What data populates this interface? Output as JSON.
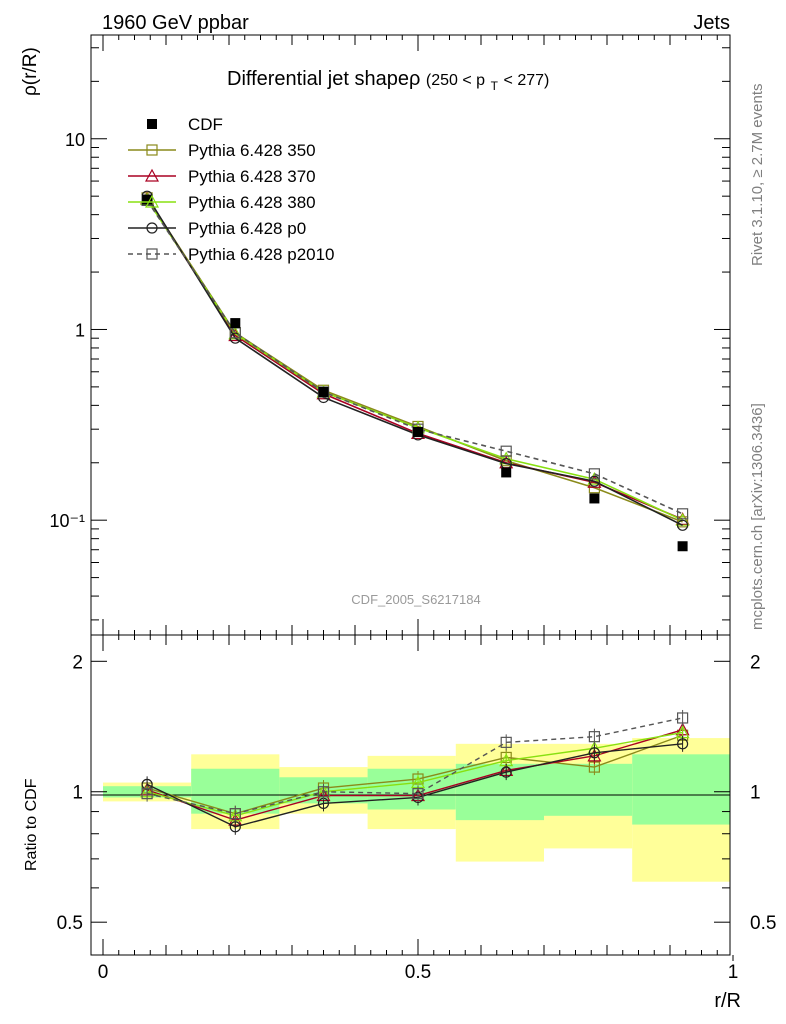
{
  "header": {
    "left_label": "1960 GeV ppbar",
    "right_label": "Jets",
    "side_label_top": "Rivet 3.1.10, ≥ 2.7M events",
    "side_label_bottom": "mcplots.cern.ch [arXiv:1306.3436]",
    "analysis_id": "CDF_2005_S6217184"
  },
  "chart_data": [
    {
      "type": "line",
      "title": "Differential jet shapeρ",
      "subtitle": "(250 < p_T < 277)",
      "title_parts": {
        "main": "Differential jet shapeρ",
        "range_pre": "(250 < p",
        "range_sub": "T",
        "range_post": " < 277)"
      },
      "xlabel": "r/R",
      "ylabel": "ρ(r/R)",
      "xlim": [
        0,
        1
      ],
      "ylim": [
        0.025,
        35
      ],
      "yscale": "log",
      "y_tick_labels": [
        "10",
        "1",
        "10⁻¹"
      ],
      "x": [
        0.07,
        0.21,
        0.35,
        0.5,
        0.64,
        0.78,
        0.92
      ],
      "series": [
        {
          "name": "CDF",
          "color": "#000000",
          "marker": "filled-square",
          "line": "none",
          "values": [
            4.8,
            1.08,
            0.47,
            0.29,
            0.178,
            0.13,
            0.073
          ]
        },
        {
          "name": "Pythia 6.428 350",
          "color": "#8a8a1a",
          "marker": "open-square",
          "line": "solid",
          "values": [
            4.9,
            0.96,
            0.48,
            0.31,
            0.205,
            0.148,
            0.098
          ]
        },
        {
          "name": "Pythia 6.428 370",
          "color": "#aa0022",
          "marker": "open-triangle",
          "line": "solid",
          "values": [
            4.85,
            0.93,
            0.46,
            0.285,
            0.2,
            0.158,
            0.101
          ]
        },
        {
          "name": "Pythia 6.428 380",
          "color": "#88e010",
          "marker": "open-triangle",
          "line": "solid",
          "values": [
            4.8,
            0.95,
            0.47,
            0.305,
            0.21,
            0.164,
            0.1
          ]
        },
        {
          "name": "Pythia 6.428 p0",
          "color": "#222222",
          "marker": "open-circle",
          "line": "solid",
          "values": [
            5.0,
            0.9,
            0.44,
            0.28,
            0.198,
            0.16,
            0.094
          ]
        },
        {
          "name": "Pythia 6.428 p2010",
          "color": "#555555",
          "marker": "open-square",
          "line": "dashed",
          "values": [
            4.75,
            0.96,
            0.47,
            0.3,
            0.23,
            0.175,
            0.108
          ]
        }
      ]
    },
    {
      "type": "line",
      "xlabel": "r/R",
      "ylabel": "Ratio to CDF",
      "xlim": [
        0,
        1
      ],
      "ylim": [
        0.42,
        2.3
      ],
      "x_tick_labels": [
        "0",
        "0.5",
        "1"
      ],
      "y_tick_labels": [
        "0.5",
        "1",
        "2"
      ],
      "x": [
        0.07,
        0.21,
        0.35,
        0.5,
        0.64,
        0.78,
        0.92
      ],
      "bands": {
        "x_edges": [
          0,
          0.14,
          0.28,
          0.42,
          0.56,
          0.7,
          0.84,
          1.0
        ],
        "yellow_low": [
          0.95,
          0.82,
          0.89,
          0.82,
          0.69,
          0.74,
          0.62
        ],
        "yellow_high": [
          1.05,
          1.22,
          1.14,
          1.21,
          1.29,
          1.29,
          1.33
        ],
        "green_low": [
          0.97,
          0.89,
          0.94,
          0.91,
          0.86,
          0.88,
          0.84
        ],
        "green_high": [
          1.03,
          1.13,
          1.08,
          1.13,
          1.16,
          1.16,
          1.22
        ]
      },
      "series": [
        {
          "name": "Pythia 6.428 350",
          "color": "#8a8a1a",
          "marker": "open-square",
          "line": "solid",
          "values": [
            1.02,
            0.89,
            1.02,
            1.07,
            1.2,
            1.14,
            1.35
          ]
        },
        {
          "name": "Pythia 6.428 370",
          "color": "#aa0022",
          "marker": "open-triangle",
          "line": "solid",
          "values": [
            1.01,
            0.86,
            0.98,
            0.98,
            1.12,
            1.21,
            1.39
          ]
        },
        {
          "name": "Pythia 6.428 380",
          "color": "#88e010",
          "marker": "open-triangle",
          "line": "solid",
          "values": [
            1.0,
            0.88,
            1.0,
            1.05,
            1.18,
            1.26,
            1.37
          ]
        },
        {
          "name": "Pythia 6.428 p0",
          "color": "#222222",
          "marker": "open-circle",
          "line": "solid",
          "values": [
            1.04,
            0.83,
            0.94,
            0.97,
            1.11,
            1.23,
            1.29
          ]
        },
        {
          "name": "Pythia 6.428 p2010",
          "color": "#555555",
          "marker": "open-square",
          "line": "dashed",
          "values": [
            0.99,
            0.89,
            1.0,
            0.99,
            1.3,
            1.34,
            1.48
          ]
        }
      ]
    }
  ]
}
